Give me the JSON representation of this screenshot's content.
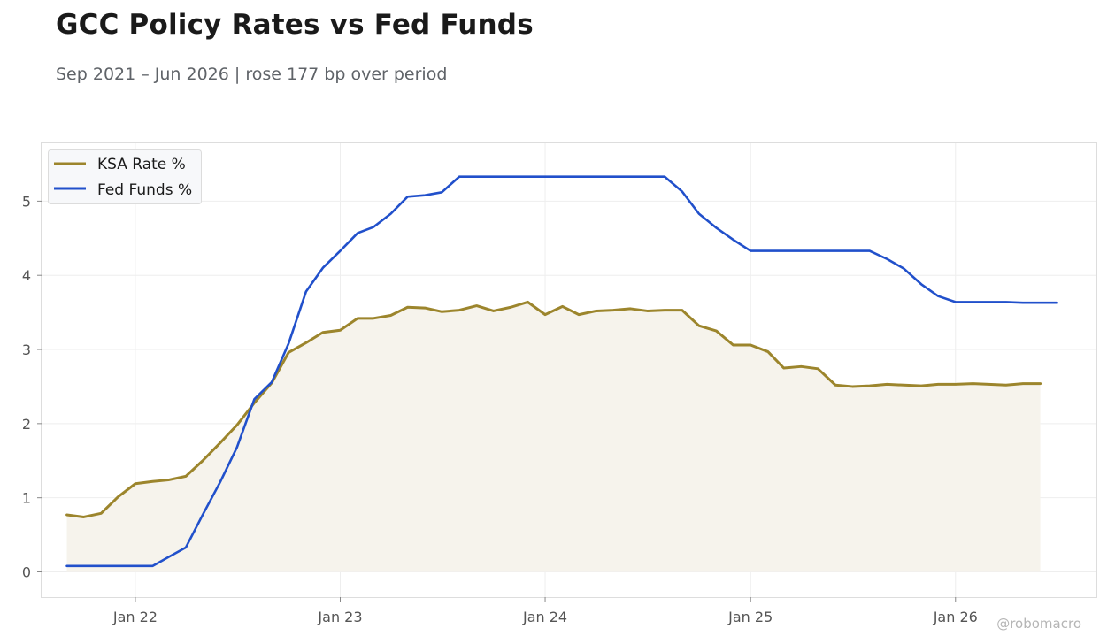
{
  "title": "GCC Policy Rates vs Fed Funds",
  "subtitle": "Sep 2021 – Jun 2026 | rose 177 bp over period",
  "credit": "@robomacro",
  "chart_data": {
    "type": "line",
    "title": "GCC Policy Rates vs Fed Funds",
    "subtitle": "Sep 2021 – Jun 2026 | rose 177 bp over period",
    "xlabel": "",
    "ylabel": "",
    "x_tick_labels": [
      "Jan 22",
      "Jan 23",
      "Jan 24",
      "Jan 25",
      "Jan 26"
    ],
    "y_tick_labels": [
      "0",
      "1",
      "2",
      "3",
      "4",
      "5"
    ],
    "ylim": [
      -0.34,
      5.78
    ],
    "xlim": [
      "2021-07-18",
      "2026-09-09"
    ],
    "grid": true,
    "legend": "top-left",
    "colors": {
      "ksa": "#9c852c",
      "fed": "#2150cb",
      "ksa_fill": "#f6f3ec"
    },
    "series": [
      {
        "name": "KSA Rate %",
        "fill_to_zero": true,
        "points": [
          [
            "2021-09-01",
            0.77
          ],
          [
            "2021-10-01",
            0.74
          ],
          [
            "2021-11-01",
            0.79
          ],
          [
            "2021-12-01",
            1.01
          ],
          [
            "2022-01-01",
            1.19
          ],
          [
            "2022-02-01",
            1.22
          ],
          [
            "2022-03-01",
            1.24
          ],
          [
            "2022-04-01",
            1.29
          ],
          [
            "2022-05-01",
            1.5
          ],
          [
            "2022-06-01",
            1.74
          ],
          [
            "2022-07-01",
            1.98
          ],
          [
            "2022-08-01",
            2.28
          ],
          [
            "2022-09-01",
            2.55
          ],
          [
            "2022-10-01",
            2.96
          ],
          [
            "2022-11-01",
            3.09
          ],
          [
            "2022-12-01",
            3.23
          ],
          [
            "2023-01-01",
            3.26
          ],
          [
            "2023-02-01",
            3.42
          ],
          [
            "2023-03-01",
            3.42
          ],
          [
            "2023-04-01",
            3.46
          ],
          [
            "2023-05-01",
            3.57
          ],
          [
            "2023-06-01",
            3.56
          ],
          [
            "2023-07-01",
            3.51
          ],
          [
            "2023-08-01",
            3.53
          ],
          [
            "2023-09-01",
            3.59
          ],
          [
            "2023-10-01",
            3.52
          ],
          [
            "2023-11-01",
            3.57
          ],
          [
            "2023-12-01",
            3.64
          ],
          [
            "2024-01-01",
            3.47
          ],
          [
            "2024-02-01",
            3.58
          ],
          [
            "2024-03-01",
            3.47
          ],
          [
            "2024-04-01",
            3.52
          ],
          [
            "2024-05-01",
            3.53
          ],
          [
            "2024-06-01",
            3.55
          ],
          [
            "2024-07-01",
            3.52
          ],
          [
            "2024-08-01",
            3.53
          ],
          [
            "2024-09-01",
            3.53
          ],
          [
            "2024-10-01",
            3.32
          ],
          [
            "2024-11-01",
            3.25
          ],
          [
            "2024-12-01",
            3.06
          ],
          [
            "2025-01-01",
            3.06
          ],
          [
            "2025-02-01",
            2.97
          ],
          [
            "2025-03-01",
            2.75
          ],
          [
            "2025-04-01",
            2.77
          ],
          [
            "2025-05-01",
            2.74
          ],
          [
            "2025-06-01",
            2.52
          ],
          [
            "2025-07-01",
            2.5
          ],
          [
            "2025-08-01",
            2.51
          ],
          [
            "2025-09-01",
            2.53
          ],
          [
            "2025-10-01",
            2.52
          ],
          [
            "2025-11-01",
            2.51
          ],
          [
            "2025-12-01",
            2.53
          ],
          [
            "2026-01-01",
            2.53
          ],
          [
            "2026-02-01",
            2.54
          ],
          [
            "2026-03-01",
            2.53
          ],
          [
            "2026-04-01",
            2.52
          ],
          [
            "2026-05-01",
            2.54
          ],
          [
            "2026-06-01",
            2.54
          ]
        ]
      },
      {
        "name": "Fed Funds %",
        "points": [
          [
            "2021-09-01",
            0.08
          ],
          [
            "2021-10-01",
            0.08
          ],
          [
            "2021-11-01",
            0.08
          ],
          [
            "2021-12-01",
            0.08
          ],
          [
            "2022-01-01",
            0.08
          ],
          [
            "2022-02-01",
            0.08
          ],
          [
            "2022-03-01",
            0.2
          ],
          [
            "2022-04-01",
            0.33
          ],
          [
            "2022-05-01",
            0.77
          ],
          [
            "2022-06-01",
            1.21
          ],
          [
            "2022-07-01",
            1.68
          ],
          [
            "2022-08-01",
            2.33
          ],
          [
            "2022-09-01",
            2.56
          ],
          [
            "2022-10-01",
            3.08
          ],
          [
            "2022-11-01",
            3.78
          ],
          [
            "2022-12-01",
            4.1
          ],
          [
            "2023-01-01",
            4.33
          ],
          [
            "2023-02-01",
            4.57
          ],
          [
            "2023-03-01",
            4.65
          ],
          [
            "2023-04-01",
            4.83
          ],
          [
            "2023-05-01",
            5.06
          ],
          [
            "2023-06-01",
            5.08
          ],
          [
            "2023-07-01",
            5.12
          ],
          [
            "2023-08-01",
            5.33
          ],
          [
            "2023-09-01",
            5.33
          ],
          [
            "2023-10-01",
            5.33
          ],
          [
            "2023-11-01",
            5.33
          ],
          [
            "2023-12-01",
            5.33
          ],
          [
            "2024-01-01",
            5.33
          ],
          [
            "2024-02-01",
            5.33
          ],
          [
            "2024-03-01",
            5.33
          ],
          [
            "2024-04-01",
            5.33
          ],
          [
            "2024-05-01",
            5.33
          ],
          [
            "2024-06-01",
            5.33
          ],
          [
            "2024-07-01",
            5.33
          ],
          [
            "2024-08-01",
            5.33
          ],
          [
            "2024-09-01",
            5.13
          ],
          [
            "2024-10-01",
            4.83
          ],
          [
            "2024-11-01",
            4.64
          ],
          [
            "2024-12-01",
            4.48
          ],
          [
            "2025-01-01",
            4.33
          ],
          [
            "2025-02-01",
            4.33
          ],
          [
            "2025-03-01",
            4.33
          ],
          [
            "2025-04-01",
            4.33
          ],
          [
            "2025-05-01",
            4.33
          ],
          [
            "2025-06-01",
            4.33
          ],
          [
            "2025-07-01",
            4.33
          ],
          [
            "2025-08-01",
            4.33
          ],
          [
            "2025-09-01",
            4.22
          ],
          [
            "2025-10-01",
            4.09
          ],
          [
            "2025-11-01",
            3.88
          ],
          [
            "2025-12-01",
            3.72
          ],
          [
            "2026-01-01",
            3.64
          ],
          [
            "2026-02-01",
            3.64
          ],
          [
            "2026-03-01",
            3.64
          ],
          [
            "2026-04-01",
            3.64
          ],
          [
            "2026-05-01",
            3.63
          ],
          [
            "2026-06-01",
            3.63
          ],
          [
            "2026-07-01",
            3.63
          ]
        ]
      }
    ]
  }
}
